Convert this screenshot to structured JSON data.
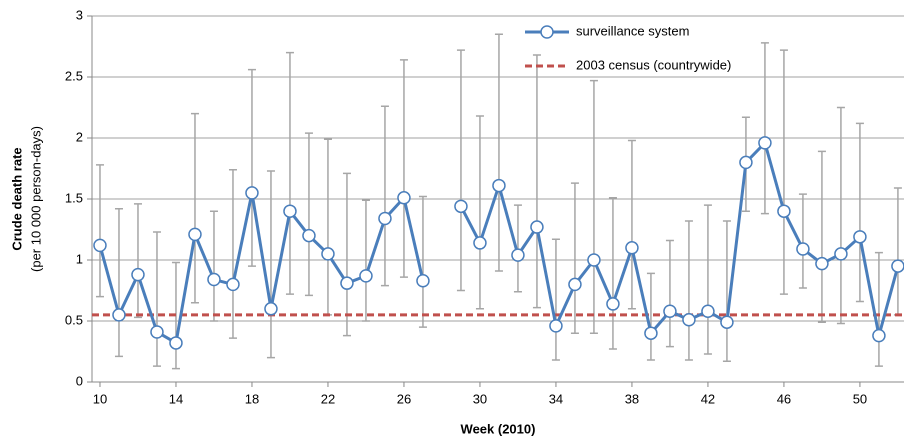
{
  "chart_data": {
    "type": "line",
    "x_label": "Week (2010)",
    "y_label": [
      "Crude death rate",
      "(per 10 000 person-days)"
    ],
    "x": [
      10,
      11,
      12,
      13,
      14,
      15,
      16,
      17,
      18,
      19,
      20,
      21,
      22,
      23,
      24,
      25,
      26,
      27,
      28,
      29,
      30,
      31,
      32,
      33,
      34,
      35,
      36,
      37,
      38,
      39,
      40,
      41,
      42,
      43,
      44,
      45,
      46,
      47,
      48,
      49,
      50,
      51,
      52
    ],
    "series": [
      {
        "name": "surveillance system",
        "color": "#4a7ebb",
        "error_color": "#a6a6a6",
        "values": [
          1.12,
          0.55,
          0.88,
          0.41,
          0.32,
          1.21,
          0.84,
          0.8,
          1.55,
          0.6,
          1.4,
          1.2,
          1.05,
          0.81,
          0.87,
          1.34,
          1.51,
          0.83,
          null,
          1.44,
          1.14,
          1.61,
          1.04,
          1.27,
          0.46,
          0.8,
          1.0,
          0.64,
          1.1,
          0.4,
          0.58,
          0.51,
          0.58,
          0.49,
          1.8,
          1.96,
          1.4,
          1.09,
          0.97,
          1.05,
          1.19,
          0.38,
          0.95
        ],
        "error_low": [
          0.7,
          0.21,
          0.53,
          0.13,
          0.11,
          0.65,
          0.5,
          0.36,
          0.95,
          0.2,
          0.72,
          0.71,
          0.55,
          0.38,
          0.5,
          0.79,
          0.86,
          0.45,
          null,
          0.75,
          0.6,
          0.91,
          0.74,
          0.61,
          0.18,
          0.4,
          0.4,
          0.27,
          0.6,
          0.18,
          0.29,
          0.18,
          0.23,
          0.17,
          1.4,
          1.38,
          0.72,
          0.77,
          0.49,
          0.48,
          0.66,
          0.13,
          0.55
        ],
        "error_high": [
          1.78,
          1.42,
          1.46,
          1.23,
          0.98,
          2.2,
          1.4,
          1.74,
          2.56,
          1.73,
          2.7,
          2.04,
          1.99,
          1.71,
          1.49,
          2.26,
          2.64,
          1.52,
          null,
          2.72,
          2.18,
          2.85,
          1.45,
          2.68,
          1.17,
          1.63,
          2.47,
          1.51,
          1.98,
          0.89,
          1.16,
          1.32,
          1.45,
          1.32,
          2.17,
          2.78,
          2.72,
          1.54,
          1.89,
          2.25,
          2.12,
          1.06,
          1.59
        ]
      }
    ],
    "reference_line": {
      "name": "2003 census (countrywide)",
      "value": 0.55,
      "color": "#c0504d"
    },
    "xlim": [
      9.58,
      52.32
    ],
    "xticks": [
      10,
      14,
      18,
      22,
      26,
      30,
      34,
      38,
      42,
      46,
      50
    ],
    "ylim": [
      0,
      3
    ],
    "yticks": [
      0,
      0.5,
      1,
      1.5,
      2,
      2.5,
      3
    ],
    "grid": true,
    "legend": "upper right"
  }
}
